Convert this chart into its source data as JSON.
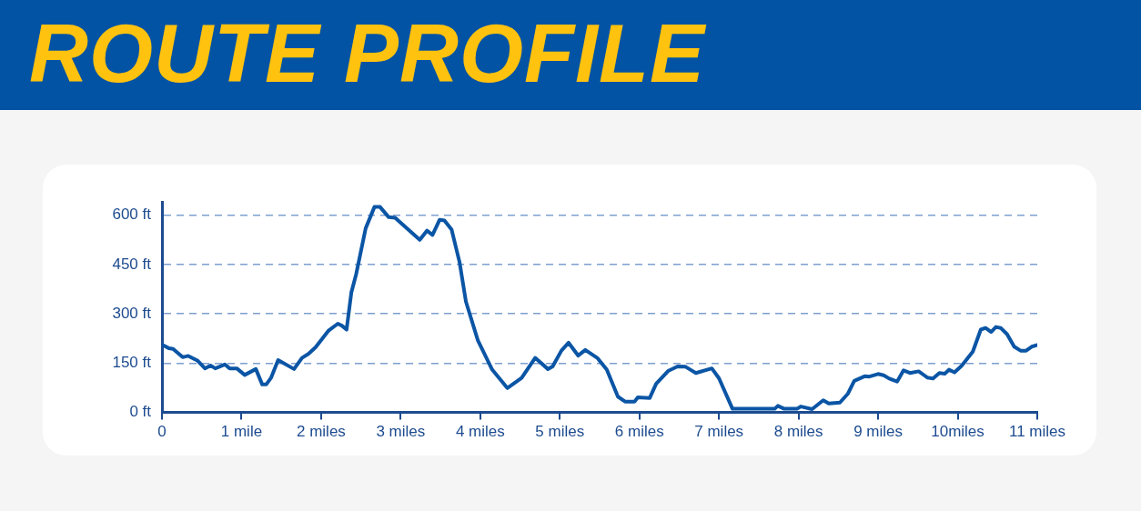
{
  "chart_data": {
    "type": "line",
    "title": "ROUTE PROFILE",
    "x": [
      0,
      0.09,
      0.14,
      0.26,
      0.33,
      0.45,
      0.54,
      0.61,
      0.67,
      0.79,
      0.85,
      0.94,
      1.04,
      1.18,
      1.26,
      1.31,
      1.37,
      1.46,
      1.66,
      1.76,
      1.84,
      1.93,
      2.09,
      2.21,
      2.26,
      2.32,
      2.38,
      2.44,
      2.56,
      2.67,
      2.74,
      2.85,
      2.93,
      3.24,
      3.33,
      3.4,
      3.49,
      3.55,
      3.64,
      3.74,
      3.82,
      3.97,
      4.15,
      4.34,
      4.52,
      4.69,
      4.85,
      4.91,
      5.02,
      5.11,
      5.23,
      5.32,
      5.47,
      5.59,
      5.73,
      5.82,
      5.94,
      5.98,
      6.13,
      6.21,
      6.36,
      6.48,
      6.58,
      6.71,
      6.91,
      7.0,
      7.17,
      7.41,
      7.7,
      7.74,
      7.82,
      7.98,
      8.03,
      8.17,
      8.31,
      8.38,
      8.52,
      8.62,
      8.7,
      8.83,
      8.89,
      9.0,
      9.07,
      9.14,
      9.24,
      9.32,
      9.4,
      9.51,
      9.62,
      9.69,
      9.77,
      9.84,
      9.89,
      9.96,
      10.05,
      10.19,
      10.29,
      10.35,
      10.42,
      10.48,
      10.54,
      10.62,
      10.71,
      10.79,
      10.86,
      10.93,
      11.0
    ],
    "series": [
      {
        "color": "#0b55a5",
        "values": [
          206,
          195,
          193,
          168,
          172,
          157,
          134,
          143,
          134,
          146,
          134,
          134,
          114,
          132,
          85,
          85,
          105,
          159,
          132,
          166,
          178,
          198,
          248,
          270,
          264,
          252,
          365,
          420,
          560,
          625,
          625,
          594,
          592,
          525,
          553,
          540,
          586,
          584,
          556,
          457,
          337,
          219,
          130,
          74,
          105,
          166,
          132,
          140,
          188,
          212,
          173,
          190,
          166,
          130,
          48,
          33,
          33,
          46,
          44,
          87,
          126,
          140,
          139,
          120,
          134,
          104,
          11,
          11,
          11,
          20,
          11,
          11,
          18,
          10,
          37,
          27,
          30,
          57,
          96,
          110,
          109,
          117,
          113,
          103,
          94,
          128,
          120,
          125,
          106,
          103,
          120,
          118,
          130,
          122,
          142,
          185,
          252,
          257,
          245,
          260,
          257,
          238,
          200,
          188,
          188,
          200,
          205
        ]
      }
    ],
    "xlim": [
      0,
      11
    ],
    "xticks": [
      0,
      {
        "value": 1,
        "label": "1 mile"
      },
      {
        "value": 2,
        "label": "2 miles"
      },
      {
        "value": 3,
        "label": "3 miles"
      },
      {
        "value": 4,
        "label": "4 miles"
      },
      {
        "value": 5,
        "label": "5 miles"
      },
      {
        "value": 6,
        "label": "6 miles"
      },
      {
        "value": 7,
        "label": "7 miles"
      },
      {
        "value": 8,
        "label": "8 miles"
      },
      {
        "value": 9,
        "label": "9 miles"
      },
      {
        "value": 10,
        "label": "10miles"
      },
      {
        "value": 11,
        "label": "11 miles"
      }
    ],
    "ylim": [
      0,
      640
    ],
    "yticks": [
      {
        "value": 0,
        "label": "0 ft"
      },
      {
        "value": 150,
        "label": "150 ft"
      },
      {
        "value": 300,
        "label": "300 ft"
      },
      {
        "value": 450,
        "label": "450 ft"
      },
      {
        "value": 600,
        "label": "600 ft"
      }
    ],
    "grid": "y",
    "marker": "none",
    "line_style": "solid"
  }
}
